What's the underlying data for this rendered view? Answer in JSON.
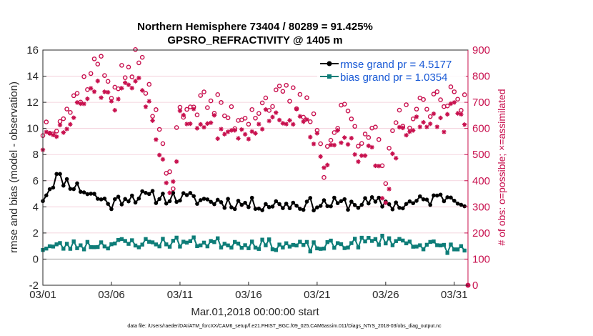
{
  "chart_data": {
    "type": "line",
    "title": "Northern Hemisphere 73404 / 80289 = 91.425%",
    "subtitle": "GPSRO_REFRACTIVITY @ 1405 m",
    "xlabel": "Mar.01,2018 00:00:00 start",
    "ylabel_left": "rmse and bias (model - observation)",
    "ylabel_right": "# of obs: o=possible; ×=assimilated",
    "xlim": [
      1,
      32
    ],
    "ylim_left": [
      -2,
      16
    ],
    "ylim_right": [
      0,
      900
    ],
    "xticks": [
      1,
      6,
      11,
      16,
      21,
      26,
      31
    ],
    "xtick_labels": [
      "03/01",
      "03/06",
      "03/11",
      "03/16",
      "03/21",
      "03/26",
      "03/31"
    ],
    "yticks_left": [
      -2,
      0,
      2,
      4,
      6,
      8,
      10,
      12,
      14,
      16
    ],
    "yticks_right": [
      0,
      100,
      200,
      300,
      400,
      500,
      600,
      700,
      800,
      900
    ],
    "legend": [
      {
        "label": "rmse grand pr = 4.5177",
        "color": "#000000"
      },
      {
        "label": "bias grand pr = 1.0354",
        "color": "#0e7d78"
      }
    ],
    "footnote": "data file: /Users/raeder/DAI/ATM_forcXX/CAM6_setup/f.e21.FHIST_BGC.f09_025.CAM6assim.011/Diags_NTrS_2018-03/obs_diag_output.nc",
    "series": [
      {
        "name": "rmse",
        "axis": "left",
        "color": "#000000",
        "marker": "dot",
        "keys": [
          [
            1,
            4.7
          ],
          [
            2,
            6.3
          ],
          [
            6,
            4.2
          ],
          [
            7,
            4.8
          ],
          [
            11,
            4.7
          ],
          [
            16,
            4.2
          ],
          [
            21,
            4.2
          ],
          [
            26,
            4.3
          ],
          [
            27,
            4.1
          ],
          [
            31,
            4.9
          ],
          [
            32,
            4.3
          ]
        ],
        "noise": 0.5,
        "seed": 11
      },
      {
        "name": "bias",
        "axis": "left",
        "color": "#0e7d78",
        "marker": "square",
        "keys": [
          [
            1,
            0.9
          ],
          [
            6,
            1.2
          ],
          [
            11,
            1.3
          ],
          [
            16,
            1.2
          ],
          [
            21,
            0.9
          ],
          [
            26,
            1.5
          ],
          [
            31,
            0.8
          ],
          [
            32,
            0.7
          ]
        ],
        "noise": 0.4,
        "seed": 23
      },
      {
        "name": "possible",
        "axis": "right",
        "color": "#c8104e",
        "marker": "circle",
        "keys": [
          [
            1,
            600
          ],
          [
            3,
            680
          ],
          [
            4,
            770
          ],
          [
            5,
            860
          ],
          [
            6,
            760
          ],
          [
            7,
            810
          ],
          [
            8,
            860
          ],
          [
            9,
            700
          ],
          [
            10,
            450
          ],
          [
            10.5,
            400
          ],
          [
            11,
            700
          ],
          [
            12,
            690
          ],
          [
            13,
            700
          ],
          [
            15,
            640
          ],
          [
            16,
            660
          ],
          [
            17,
            700
          ],
          [
            19,
            720
          ],
          [
            20,
            680
          ],
          [
            21,
            640
          ],
          [
            21.5,
            460
          ],
          [
            22,
            560
          ],
          [
            23,
            680
          ],
          [
            24,
            580
          ],
          [
            25,
            620
          ],
          [
            26,
            400
          ],
          [
            26.5,
            560
          ],
          [
            27,
            630
          ],
          [
            28,
            660
          ],
          [
            30,
            690
          ],
          [
            31,
            720
          ],
          [
            32,
            690
          ]
        ],
        "noise": 55,
        "seed": 37
      },
      {
        "name": "assimilated",
        "axis": "right",
        "color": "#c8104e",
        "marker": "star",
        "keys": [
          [
            1,
            540
          ],
          [
            3,
            620
          ],
          [
            4,
            700
          ],
          [
            5,
            780
          ],
          [
            6,
            680
          ],
          [
            7,
            730
          ],
          [
            8,
            770
          ],
          [
            9,
            630
          ],
          [
            10,
            410
          ],
          [
            10.5,
            370
          ],
          [
            11,
            660
          ],
          [
            12,
            640
          ],
          [
            13,
            620
          ],
          [
            15,
            580
          ],
          [
            16,
            590
          ],
          [
            17,
            640
          ],
          [
            19,
            650
          ],
          [
            20,
            610
          ],
          [
            21,
            560
          ],
          [
            21.5,
            420
          ],
          [
            22,
            500
          ],
          [
            23,
            600
          ],
          [
            24,
            510
          ],
          [
            25,
            560
          ],
          [
            26,
            300
          ],
          [
            26.5,
            500
          ],
          [
            27,
            560
          ],
          [
            28,
            600
          ],
          [
            30,
            620
          ],
          [
            31,
            660
          ],
          [
            32,
            640
          ]
        ],
        "noise": 45,
        "seed": 51
      }
    ]
  }
}
